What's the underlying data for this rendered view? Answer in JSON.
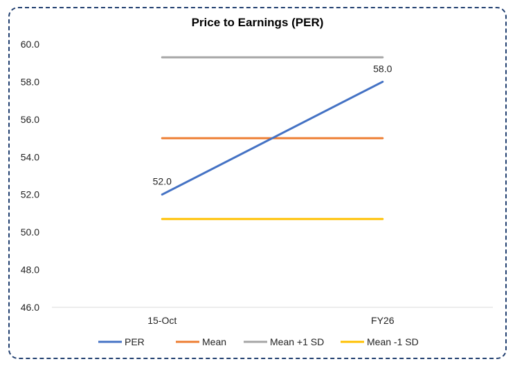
{
  "chart_data": {
    "type": "line",
    "title": "Price to Earnings (PER)",
    "xlabel": "",
    "ylabel": "",
    "categories": [
      "15-Oct",
      "FY26"
    ],
    "ylim": [
      46.0,
      60.0
    ],
    "yticks": [
      "46.0",
      "48.0",
      "50.0",
      "52.0",
      "54.0",
      "56.0",
      "58.0",
      "60.0"
    ],
    "legend_position": "bottom",
    "grid": "baseline only",
    "series": [
      {
        "name": "PER",
        "values": [
          52.0,
          58.0
        ],
        "color": "#4472c4",
        "labels": [
          "52.0",
          "58.0"
        ]
      },
      {
        "name": "Mean",
        "values": [
          55.0,
          55.0
        ],
        "color": "#ed7d31"
      },
      {
        "name": "Mean +1 SD",
        "values": [
          59.3,
          59.3
        ],
        "color": "#a5a5a5"
      },
      {
        "name": "Mean -1 SD",
        "values": [
          50.7,
          50.7
        ],
        "color": "#ffc000"
      }
    ]
  }
}
